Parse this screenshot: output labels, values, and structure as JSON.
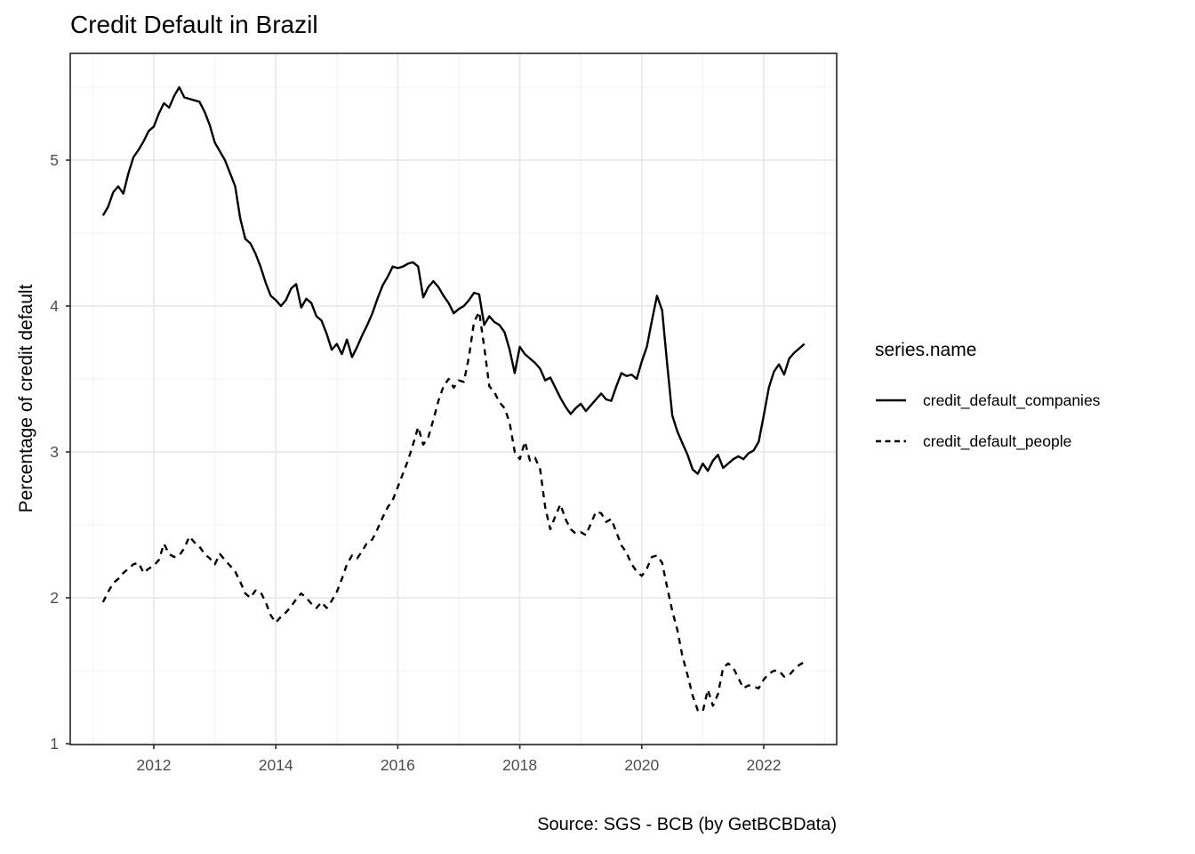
{
  "chart": {
    "title": "Credit Default in Brazil",
    "y_axis_title": "Percentage of credit default",
    "caption": "Source: SGS - BCB (by GetBCBData)",
    "legend": {
      "title": "series.name",
      "entries": [
        {
          "label": "credit_default_companies",
          "line_style": "solid"
        },
        {
          "label": "credit_default_people",
          "line_style": "dashed"
        }
      ]
    }
  },
  "colors": {
    "background": "#ffffff",
    "line": "#000000",
    "grid_major": "#e9e9e9",
    "grid_minor": "#f3f3f3",
    "panel_border": "#333333",
    "tick_label": "#4d4d4d"
  },
  "chart_data": {
    "type": "line",
    "title": "Credit Default in Brazil",
    "xlabel": "",
    "ylabel": "Percentage of credit default",
    "caption": "Source: SGS - BCB (by GetBCBData)",
    "grid": true,
    "legend_position": "right",
    "x_start": "2011-03",
    "frequency": "monthly",
    "x_tick_years": [
      2012,
      2014,
      2016,
      2018,
      2020,
      2022
    ],
    "x_tick_labels": [
      "2012",
      "2014",
      "2016",
      "2018",
      "2020",
      "2022"
    ],
    "x_minor_years": [
      2011,
      2013,
      2015,
      2017,
      2019,
      2021,
      2023
    ],
    "y_tick_values": [
      1,
      2,
      3,
      4,
      5
    ],
    "y_tick_labels": [
      "1",
      "2",
      "3",
      "4",
      "5"
    ],
    "y_minor_values": [
      1.5,
      2.5,
      3.5,
      4.5,
      5.5
    ],
    "xlim_years": [
      2010.63,
      2023.2
    ],
    "ylim": [
      0.97,
      5.73
    ],
    "series": [
      {
        "name": "credit_default_companies",
        "style": "solid",
        "values": [
          4.62,
          4.68,
          4.78,
          4.82,
          4.77,
          4.91,
          5.02,
          5.07,
          5.13,
          5.2,
          5.23,
          5.32,
          5.39,
          5.36,
          5.44,
          5.5,
          5.43,
          5.42,
          5.41,
          5.4,
          5.33,
          5.24,
          5.12,
          5.06,
          5.0,
          4.91,
          4.82,
          4.6,
          4.46,
          4.43,
          4.36,
          4.27,
          4.16,
          4.07,
          4.04,
          4.0,
          4.04,
          4.12,
          4.15,
          3.99,
          4.05,
          4.02,
          3.93,
          3.9,
          3.81,
          3.7,
          3.74,
          3.67,
          3.77,
          3.65,
          3.72,
          3.8,
          3.87,
          3.95,
          4.05,
          4.14,
          4.2,
          4.27,
          4.26,
          4.27,
          4.29,
          4.3,
          4.27,
          4.06,
          4.13,
          4.17,
          4.13,
          4.07,
          4.02,
          3.95,
          3.98,
          4.0,
          4.04,
          4.09,
          4.08,
          3.87,
          3.93,
          3.89,
          3.87,
          3.82,
          3.7,
          3.54,
          3.72,
          3.67,
          3.64,
          3.61,
          3.57,
          3.49,
          3.51,
          3.44,
          3.37,
          3.31,
          3.26,
          3.3,
          3.33,
          3.28,
          3.32,
          3.36,
          3.4,
          3.36,
          3.35,
          3.45,
          3.54,
          3.52,
          3.53,
          3.5,
          3.62,
          3.72,
          3.9,
          4.07,
          3.97,
          3.6,
          3.25,
          3.14,
          3.06,
          2.98,
          2.88,
          2.85,
          2.92,
          2.87,
          2.94,
          2.98,
          2.89,
          2.92,
          2.95,
          2.97,
          2.95,
          2.99,
          3.01,
          3.07,
          3.25,
          3.44,
          3.55,
          3.6,
          3.53,
          3.64,
          3.68,
          3.71,
          3.74
        ]
      },
      {
        "name": "credit_default_people",
        "style": "dashed",
        "values": [
          1.97,
          2.04,
          2.1,
          2.13,
          2.17,
          2.2,
          2.23,
          2.24,
          2.17,
          2.2,
          2.22,
          2.26,
          2.37,
          2.3,
          2.28,
          2.29,
          2.34,
          2.42,
          2.38,
          2.35,
          2.3,
          2.27,
          2.23,
          2.3,
          2.26,
          2.22,
          2.18,
          2.11,
          2.03,
          2.0,
          2.05,
          2.04,
          1.97,
          1.88,
          1.83,
          1.87,
          1.9,
          1.94,
          1.99,
          2.03,
          2.0,
          1.96,
          1.93,
          1.97,
          1.93,
          1.98,
          2.04,
          2.13,
          2.23,
          2.29,
          2.27,
          2.32,
          2.38,
          2.4,
          2.47,
          2.55,
          2.62,
          2.67,
          2.76,
          2.85,
          2.94,
          3.05,
          3.17,
          3.05,
          3.1,
          3.22,
          3.35,
          3.45,
          3.5,
          3.44,
          3.49,
          3.48,
          3.65,
          3.89,
          3.96,
          3.72,
          3.45,
          3.41,
          3.34,
          3.3,
          3.2,
          3.0,
          2.95,
          3.07,
          2.94,
          2.96,
          2.88,
          2.62,
          2.47,
          2.56,
          2.64,
          2.54,
          2.47,
          2.44,
          2.45,
          2.43,
          2.51,
          2.59,
          2.58,
          2.52,
          2.54,
          2.45,
          2.36,
          2.31,
          2.23,
          2.18,
          2.15,
          2.2,
          2.28,
          2.29,
          2.24,
          2.07,
          1.91,
          1.78,
          1.6,
          1.47,
          1.33,
          1.23,
          1.22,
          1.37,
          1.26,
          1.34,
          1.52,
          1.55,
          1.52,
          1.45,
          1.38,
          1.4,
          1.39,
          1.38,
          1.44,
          1.48,
          1.5,
          1.5,
          1.46,
          1.47,
          1.51,
          1.54,
          1.56
        ]
      }
    ]
  }
}
